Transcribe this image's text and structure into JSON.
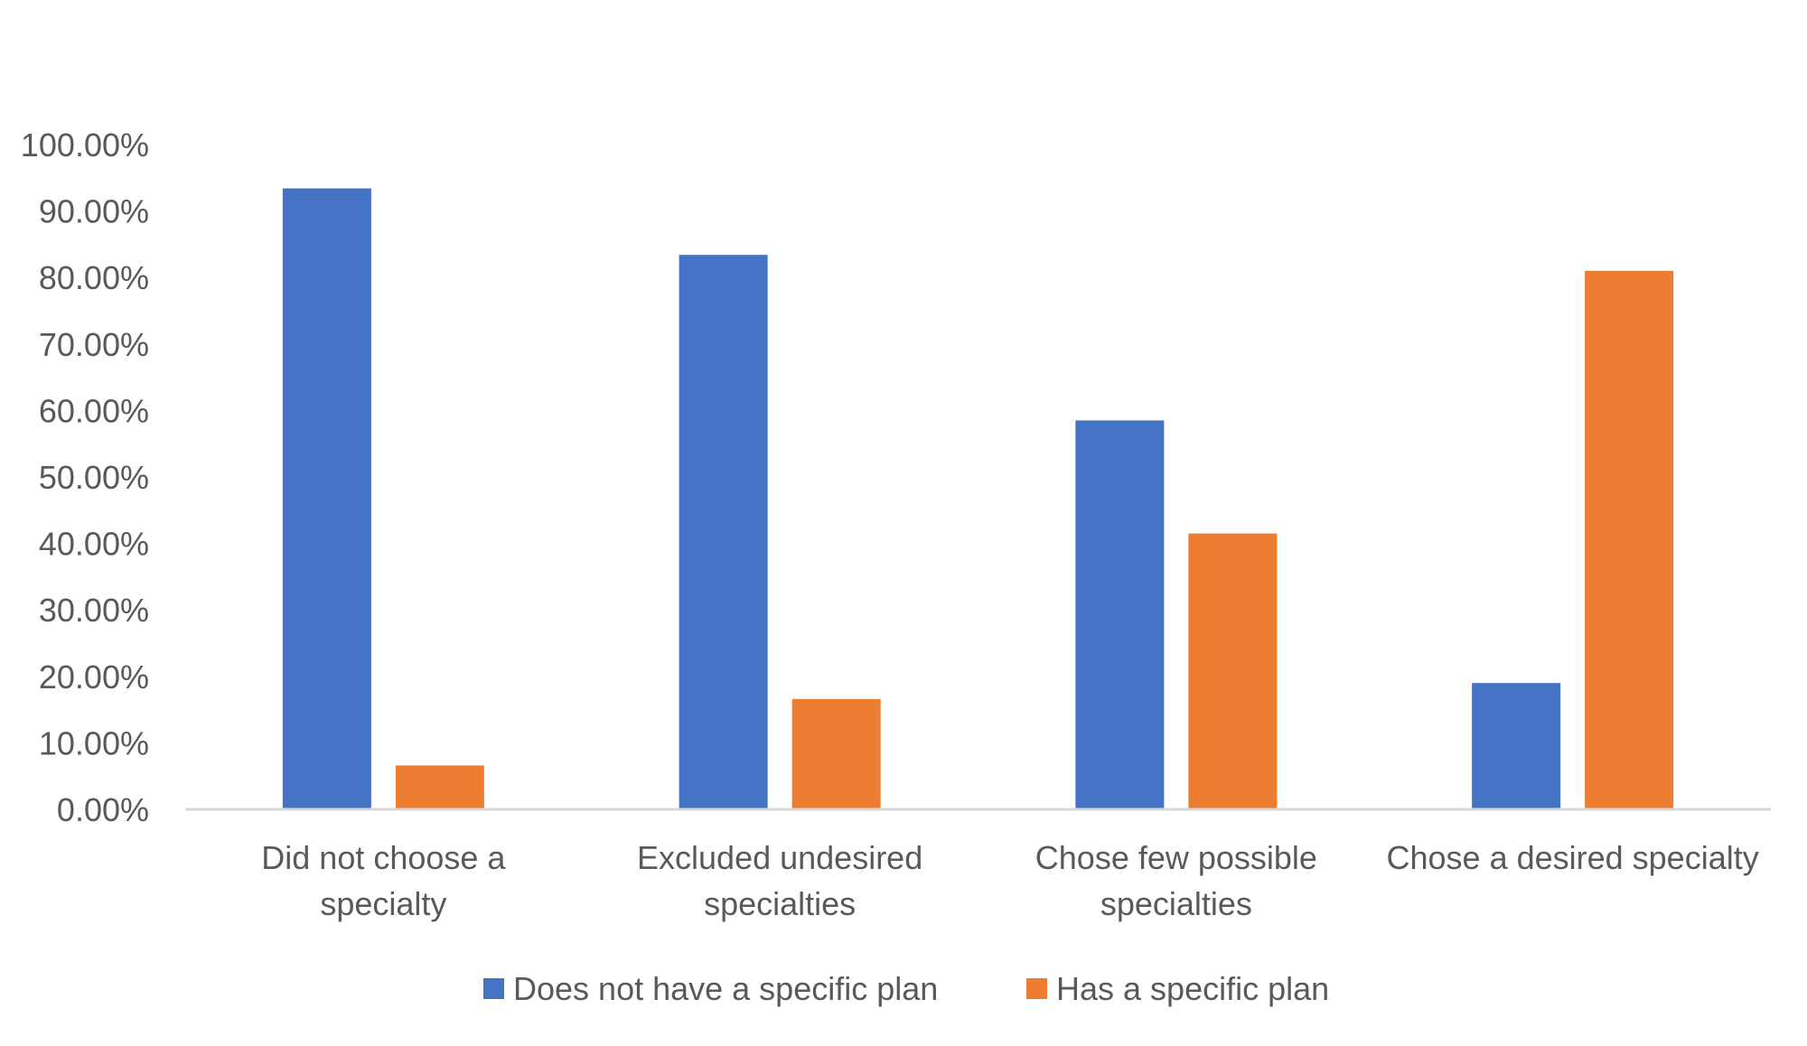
{
  "chart_data": {
    "type": "bar",
    "title": "",
    "xlabel": "",
    "ylabel": "",
    "categories": [
      [
        "Did not choose a",
        "specialty"
      ],
      [
        "Excluded undesired",
        "specialties"
      ],
      [
        "Chose few possible",
        "specialties"
      ],
      [
        "Chose a desired specialty"
      ]
    ],
    "series": [
      {
        "name": "Does not have a specific plan",
        "color": "#4472C4",
        "values": [
          0.934,
          0.834,
          0.585,
          0.19
        ]
      },
      {
        "name": "Has a specific plan",
        "color": "#ED7D31",
        "values": [
          0.066,
          0.166,
          0.415,
          0.81
        ]
      }
    ],
    "ylim": [
      0,
      1
    ],
    "yticks": [
      "0.00%",
      "10.00%",
      "20.00%",
      "30.00%",
      "40.00%",
      "50.00%",
      "60.00%",
      "70.00%",
      "80.00%",
      "90.00%",
      "100.00%"
    ],
    "grid": false,
    "legend_position": "bottom"
  }
}
